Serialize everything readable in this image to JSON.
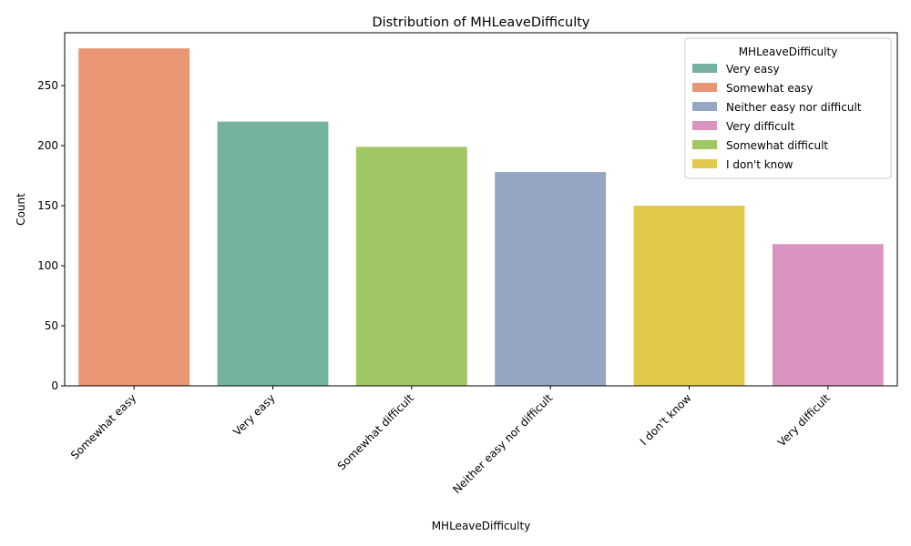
{
  "chart_data": {
    "type": "bar",
    "title": "Distribution of MHLeaveDifficulty",
    "xlabel": "MHLeaveDifficulty",
    "ylabel": "Count",
    "ylim": [
      0,
      294
    ],
    "yticks": [
      0,
      50,
      100,
      150,
      200,
      250
    ],
    "categories": [
      "Somewhat easy",
      "Very easy",
      "Somewhat difficult",
      "Neither easy nor difficult",
      "I don't know",
      "Very difficult"
    ],
    "values": [
      281,
      220,
      199,
      178,
      150,
      118
    ],
    "bar_colors": [
      "#e99675",
      "#73b3a0",
      "#a1c765",
      "#95a5c4",
      "#e3c94b",
      "#db94c0"
    ],
    "legend": {
      "title": "MHLeaveDifficulty",
      "placement": "top-right",
      "entries": [
        {
          "label": "Very easy",
          "color": "#73b3a0"
        },
        {
          "label": "Somewhat easy",
          "color": "#e99675"
        },
        {
          "label": "Neither easy nor difficult",
          "color": "#95a5c4"
        },
        {
          "label": "Very difficult",
          "color": "#db94c0"
        },
        {
          "label": "Somewhat difficult",
          "color": "#a1c765"
        },
        {
          "label": "I don't know",
          "color": "#e3c94b"
        }
      ]
    },
    "grid": false
  }
}
